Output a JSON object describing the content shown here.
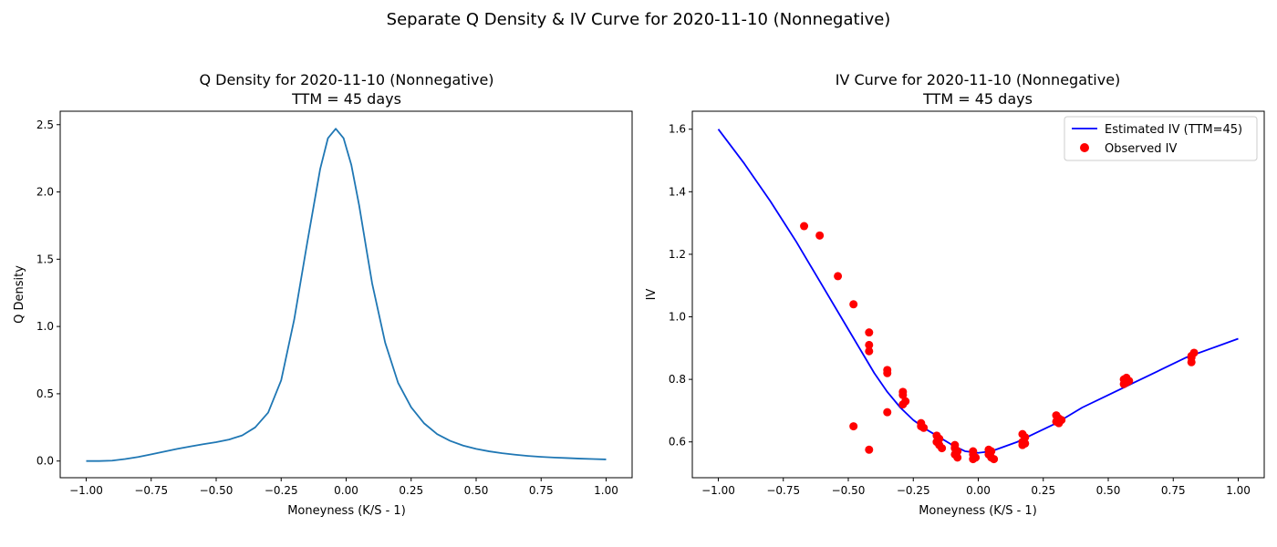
{
  "suptitle": "Separate Q Density & IV Curve for 2020-11-10 (Nonnegative)",
  "chart_data": [
    {
      "type": "line",
      "title": "Q Density for 2020-11-10 (Nonnegative)",
      "subtitle": "TTM = 45 days",
      "xlabel": "Moneyness (K/S - 1)",
      "ylabel": "Q Density",
      "xlim": [
        -1.1,
        1.1
      ],
      "ylim": [
        -0.124,
        2.6
      ],
      "xticks": [
        -1.0,
        -0.75,
        -0.5,
        -0.25,
        0.0,
        0.25,
        0.5,
        0.75,
        1.0
      ],
      "xtick_labels": [
        "−1.00",
        "−0.75",
        "−0.50",
        "−0.25",
        "0.00",
        "0.25",
        "0.50",
        "0.75",
        "1.00"
      ],
      "yticks": [
        0.0,
        0.5,
        1.0,
        1.5,
        2.0,
        2.5
      ],
      "ytick_labels": [
        "0.0",
        "0.5",
        "1.0",
        "1.5",
        "2.0",
        "2.5"
      ],
      "grid": false,
      "series": [
        {
          "color": "#1f77b4",
          "x": [
            -1.0,
            -0.95,
            -0.9,
            -0.85,
            -0.8,
            -0.75,
            -0.7,
            -0.65,
            -0.6,
            -0.55,
            -0.5,
            -0.45,
            -0.4,
            -0.35,
            -0.3,
            -0.25,
            -0.2,
            -0.15,
            -0.1,
            -0.07,
            -0.04,
            -0.01,
            0.02,
            0.05,
            0.08,
            0.1,
            0.15,
            0.2,
            0.25,
            0.3,
            0.35,
            0.4,
            0.45,
            0.5,
            0.55,
            0.6,
            0.65,
            0.7,
            0.75,
            0.8,
            0.85,
            0.9,
            0.95,
            1.0
          ],
          "y": [
            0.0,
            0.0,
            0.003,
            0.015,
            0.03,
            0.05,
            0.07,
            0.09,
            0.108,
            0.125,
            0.14,
            0.16,
            0.19,
            0.25,
            0.36,
            0.6,
            1.05,
            1.62,
            2.17,
            2.4,
            2.47,
            2.4,
            2.2,
            1.9,
            1.55,
            1.32,
            0.88,
            0.58,
            0.4,
            0.28,
            0.2,
            0.15,
            0.115,
            0.09,
            0.072,
            0.058,
            0.047,
            0.038,
            0.031,
            0.026,
            0.022,
            0.018,
            0.015,
            0.012
          ]
        }
      ]
    },
    {
      "type": "line+scatter",
      "title": "IV Curve for 2020-11-10 (Nonnegative)",
      "subtitle": "TTM = 45 days",
      "xlabel": "Moneyness (K/S - 1)",
      "ylabel": "IV",
      "xlim": [
        -1.1,
        1.1
      ],
      "ylim": [
        0.4855,
        1.6575
      ],
      "xticks": [
        -1.0,
        -0.75,
        -0.5,
        -0.25,
        0.0,
        0.25,
        0.5,
        0.75,
        1.0
      ],
      "xtick_labels": [
        "−1.00",
        "−0.75",
        "−0.50",
        "−0.25",
        "0.00",
        "0.25",
        "0.50",
        "0.75",
        "1.00"
      ],
      "yticks": [
        0.6,
        0.8,
        1.0,
        1.2,
        1.4,
        1.6
      ],
      "ytick_labels": [
        "0.6",
        "0.8",
        "1.0",
        "1.2",
        "1.4",
        "1.6"
      ],
      "grid": false,
      "legend_position": "top-right",
      "series": [
        {
          "name": "Estimated IV (TTM=45)",
          "kind": "line",
          "color": "#0000ff",
          "x": [
            -1.0,
            -0.9,
            -0.8,
            -0.7,
            -0.6,
            -0.5,
            -0.45,
            -0.4,
            -0.35,
            -0.3,
            -0.25,
            -0.2,
            -0.15,
            -0.1,
            -0.05,
            0.0,
            0.05,
            0.1,
            0.15,
            0.2,
            0.3,
            0.4,
            0.5,
            0.6,
            0.7,
            0.8,
            0.9,
            1.0
          ],
          "y": [
            1.6,
            1.49,
            1.37,
            1.24,
            1.1,
            0.96,
            0.89,
            0.82,
            0.76,
            0.71,
            0.67,
            0.64,
            0.615,
            0.59,
            0.57,
            0.565,
            0.57,
            0.585,
            0.6,
            0.62,
            0.66,
            0.71,
            0.75,
            0.79,
            0.83,
            0.87,
            0.9,
            0.93
          ]
        },
        {
          "name": "Observed IV",
          "kind": "scatter",
          "color": "#ff0000",
          "points": [
            [
              -0.67,
              1.29
            ],
            [
              -0.61,
              1.26
            ],
            [
              -0.54,
              1.13
            ],
            [
              -0.48,
              1.04
            ],
            [
              -0.48,
              0.65
            ],
            [
              -0.42,
              0.95
            ],
            [
              -0.42,
              0.91
            ],
            [
              -0.42,
              0.89
            ],
            [
              -0.42,
              0.575
            ],
            [
              -0.35,
              0.83
            ],
            [
              -0.35,
              0.82
            ],
            [
              -0.35,
              0.695
            ],
            [
              -0.29,
              0.76
            ],
            [
              -0.29,
              0.75
            ],
            [
              -0.28,
              0.73
            ],
            [
              -0.29,
              0.72
            ],
            [
              -0.22,
              0.66
            ],
            [
              -0.22,
              0.65
            ],
            [
              -0.21,
              0.645
            ],
            [
              -0.16,
              0.62
            ],
            [
              -0.15,
              0.61
            ],
            [
              -0.16,
              0.6
            ],
            [
              -0.15,
              0.59
            ],
            [
              -0.14,
              0.58
            ],
            [
              -0.09,
              0.59
            ],
            [
              -0.09,
              0.58
            ],
            [
              -0.08,
              0.57
            ],
            [
              -0.09,
              0.56
            ],
            [
              -0.08,
              0.55
            ],
            [
              -0.02,
              0.57
            ],
            [
              -0.02,
              0.56
            ],
            [
              -0.01,
              0.55
            ],
            [
              -0.02,
              0.545
            ],
            [
              0.04,
              0.575
            ],
            [
              0.05,
              0.57
            ],
            [
              0.04,
              0.56
            ],
            [
              0.05,
              0.55
            ],
            [
              0.06,
              0.545
            ],
            [
              0.17,
              0.625
            ],
            [
              0.18,
              0.615
            ],
            [
              0.17,
              0.6
            ],
            [
              0.18,
              0.595
            ],
            [
              0.17,
              0.59
            ],
            [
              0.3,
              0.685
            ],
            [
              0.31,
              0.675
            ],
            [
              0.3,
              0.665
            ],
            [
              0.31,
              0.66
            ],
            [
              0.32,
              0.67
            ],
            [
              0.56,
              0.8
            ],
            [
              0.57,
              0.79
            ],
            [
              0.58,
              0.795
            ],
            [
              0.56,
              0.785
            ],
            [
              0.57,
              0.805
            ],
            [
              0.82,
              0.875
            ],
            [
              0.83,
              0.885
            ],
            [
              0.82,
              0.87
            ],
            [
              0.82,
              0.855
            ]
          ]
        }
      ]
    }
  ]
}
